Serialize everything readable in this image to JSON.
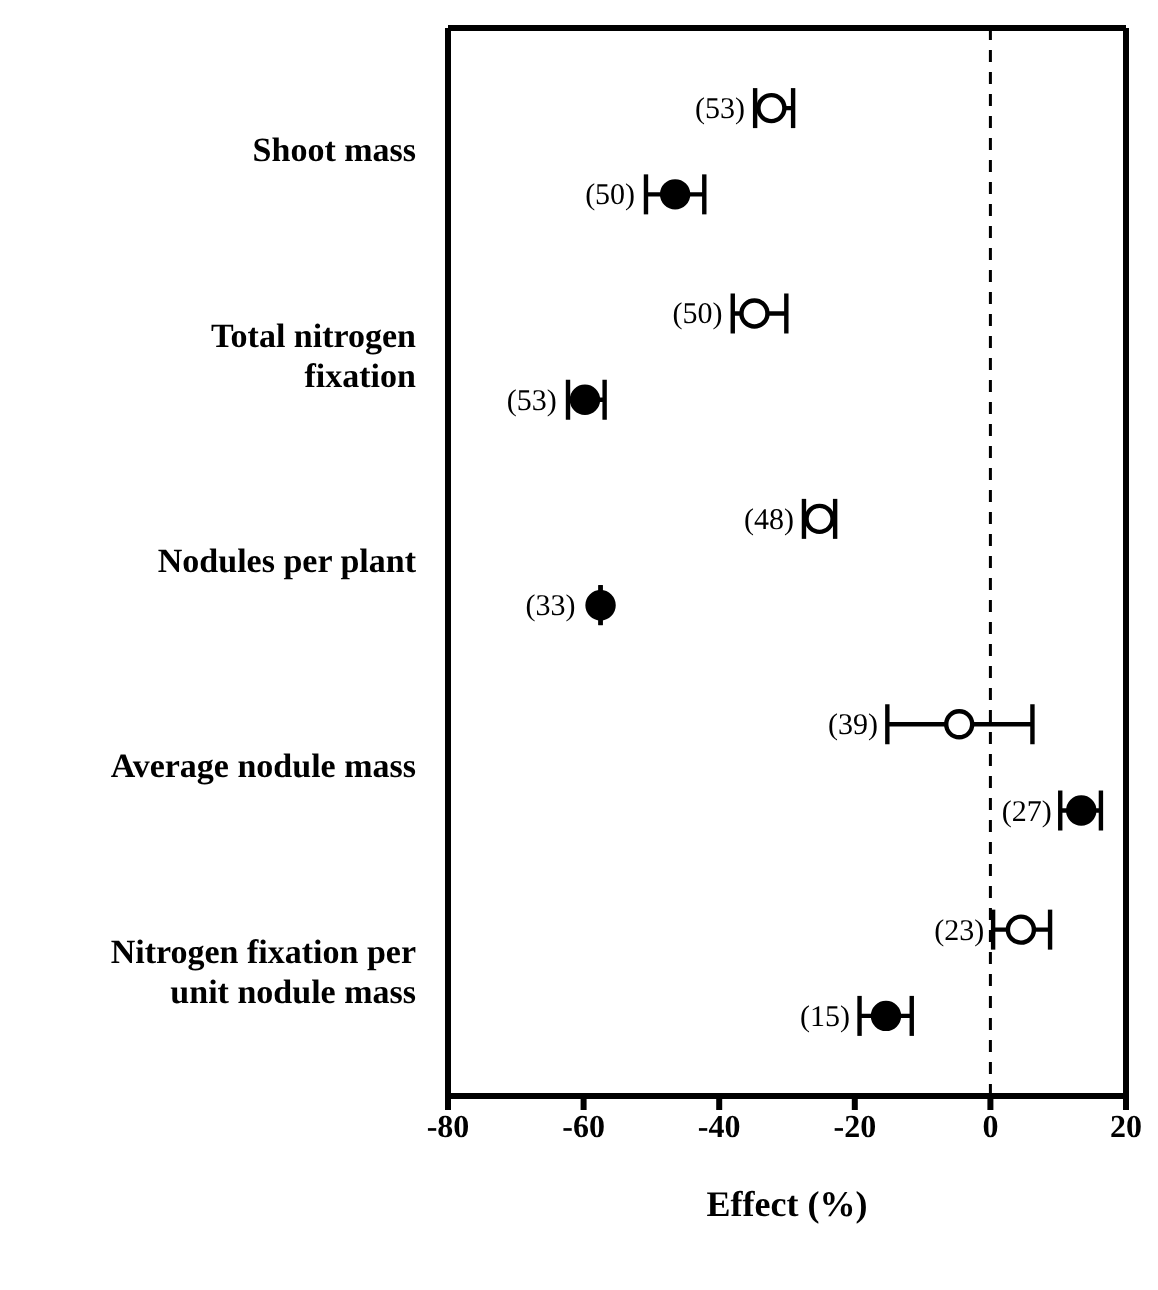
{
  "chart_data": {
    "type": "scatter",
    "orientation": "horizontal",
    "xlabel": "Effect (%)",
    "categories": [
      "Shoot mass",
      "Total nitrogen fixation",
      "Nodules per plant",
      "Average nodule mass",
      "Nitrogen fixation per unit nodule mass"
    ],
    "xlim": [
      -80,
      20
    ],
    "xticks": [
      -80,
      -60,
      -40,
      -20,
      0,
      20
    ],
    "grid": false,
    "legend": false,
    "marker": "circle",
    "ref_lines": [
      {
        "axis": "x",
        "value": 0,
        "line_style": "dashed",
        "color": "#000000"
      }
    ],
    "series": [
      {
        "color": "#000000",
        "values": [
          -32.3,
          -34.8,
          -25.2,
          -4.6,
          4.5
        ],
        "errors": [
          [
            -34.7,
            -29.1
          ],
          [
            -38,
            -30.1
          ],
          [
            -27.5,
            -22.9
          ],
          [
            -15.2,
            6.2
          ],
          [
            0.4,
            8.8
          ]
        ]
      },
      {
        "color": "#000000",
        "values": [
          -46.5,
          -59.8,
          -57.5,
          13.4,
          -15.4
        ],
        "errors": [
          [
            -50.8,
            -42.2
          ],
          [
            -62.3,
            -56.9
          ],
          null,
          [
            10.3,
            16.3
          ],
          [
            -19.3,
            -11.6
          ]
        ]
      }
    ],
    "annotations": [
      "(53)",
      "(50)",
      "(50)",
      "(53)",
      "(48)",
      "(33)",
      "(39)",
      "(27)",
      "(23)",
      "(15)"
    ]
  }
}
